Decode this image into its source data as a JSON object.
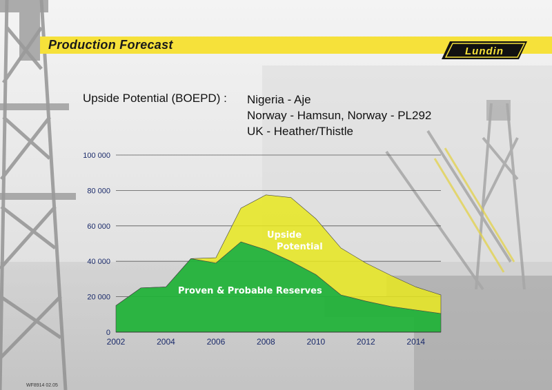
{
  "header": {
    "title": "Production Forecast",
    "logo_text": "Lundin"
  },
  "subtitle": {
    "label": "Upside Potential (BOEPD) :",
    "sites": [
      "Nigeria - Aje",
      "Norway - Hamsun, Norway - PL292",
      "UK - Heather/Thistle"
    ]
  },
  "chart_data": {
    "type": "area",
    "title": "",
    "xlabel": "",
    "ylabel": "",
    "x": [
      2002,
      2003,
      2004,
      2005,
      2006,
      2007,
      2008,
      2009,
      2010,
      2011,
      2012,
      2013,
      2014,
      2015
    ],
    "xlim": [
      2002,
      2015
    ],
    "ylim": [
      0,
      100000
    ],
    "x_ticks": [
      2002,
      2004,
      2006,
      2008,
      2010,
      2012,
      2014
    ],
    "y_ticks": [
      0,
      20000,
      40000,
      60000,
      80000,
      100000
    ],
    "y_tick_labels": [
      "0",
      "20 000",
      "40 000",
      "60 000",
      "80 000",
      "100 000"
    ],
    "grid": true,
    "stacked": true,
    "series": [
      {
        "name": "Proven & Probable Reserves",
        "color": "#23b23a",
        "values": [
          15000,
          25000,
          25500,
          41500,
          39000,
          51000,
          46500,
          40000,
          32500,
          21000,
          17500,
          14500,
          12500,
          10500
        ]
      },
      {
        "name": "Upside Potential",
        "color": "#e8e81e",
        "values": [
          0,
          0,
          0,
          0,
          3000,
          19000,
          31000,
          36000,
          31500,
          26500,
          21500,
          17500,
          13000,
          10500
        ]
      }
    ],
    "series_label_lines": [
      [
        "Proven & Probable Reserves"
      ],
      [
        "Upside",
        "Potential"
      ]
    ]
  },
  "footer": {
    "code": "WF8914 02.05"
  }
}
